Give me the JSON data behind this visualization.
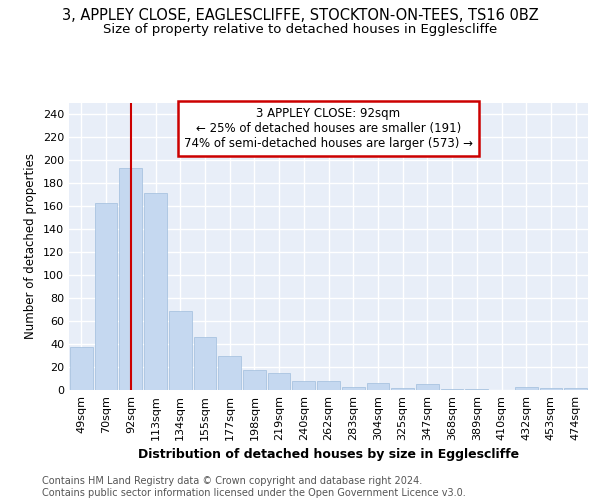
{
  "title": "3, APPLEY CLOSE, EAGLESCLIFFE, STOCKTON-ON-TEES, TS16 0BZ",
  "subtitle": "Size of property relative to detached houses in Egglescliffe",
  "xlabel": "Distribution of detached houses by size in Egglescliffe",
  "ylabel": "Number of detached properties",
  "categories": [
    "49sqm",
    "70sqm",
    "92sqm",
    "113sqm",
    "134sqm",
    "155sqm",
    "177sqm",
    "198sqm",
    "219sqm",
    "240sqm",
    "262sqm",
    "283sqm",
    "304sqm",
    "325sqm",
    "347sqm",
    "368sqm",
    "389sqm",
    "410sqm",
    "432sqm",
    "453sqm",
    "474sqm"
  ],
  "values": [
    37,
    163,
    193,
    171,
    69,
    46,
    30,
    17,
    15,
    8,
    8,
    3,
    6,
    2,
    5,
    1,
    1,
    0,
    3,
    2,
    2
  ],
  "bar_color": "#c5d8f0",
  "bar_edge_color": "#a0bedd",
  "annotation_box_text": [
    "3 APPLEY CLOSE: 92sqm",
    "← 25% of detached houses are smaller (191)",
    "74% of semi-detached houses are larger (573) →"
  ],
  "annotation_box_color": "#ffffff",
  "annotation_box_edge_color": "#cc0000",
  "vline_color": "#cc0000",
  "vline_x_index": 2,
  "background_color": "#e8eef8",
  "grid_color": "#ffffff",
  "footer_text": "Contains HM Land Registry data © Crown copyright and database right 2024.\nContains public sector information licensed under the Open Government Licence v3.0.",
  "ylim": [
    0,
    250
  ],
  "yticks": [
    0,
    20,
    40,
    60,
    80,
    100,
    120,
    140,
    160,
    180,
    200,
    220,
    240
  ],
  "title_fontsize": 10.5,
  "subtitle_fontsize": 9.5,
  "xlabel_fontsize": 9,
  "ylabel_fontsize": 8.5,
  "tick_fontsize": 8,
  "annotation_fontsize": 8.5,
  "footer_fontsize": 7
}
